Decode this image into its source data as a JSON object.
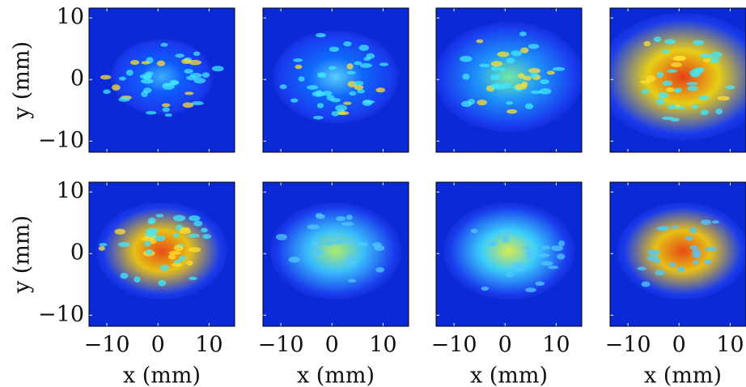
{
  "chart_data": [
    {
      "type": "image",
      "ylabel": "y (mm)",
      "xlim": [
        -13.5,
        15
      ],
      "ylim": [
        -11.8,
        11.6
      ],
      "xticks": [
        -10,
        0,
        10
      ],
      "yticks": [
        {
          "value": -10,
          "label": "−10"
        },
        0,
        10
      ]
    },
    {
      "type": "image",
      "xlim": [
        -13.5,
        15
      ],
      "ylim": [
        -11.8,
        11.6
      ],
      "xticks": [
        -10,
        0,
        10
      ],
      "yticks": [
        -10,
        0,
        10
      ]
    },
    {
      "type": "image",
      "xlim": [
        -13.5,
        15
      ],
      "ylim": [
        -11.8,
        11.6
      ],
      "xticks": [
        -10,
        0,
        10
      ],
      "yticks": [
        -10,
        0,
        10
      ]
    },
    {
      "type": "image",
      "xlim": [
        -13.5,
        15
      ],
      "ylim": [
        -11.8,
        11.6
      ],
      "xticks": [
        -10,
        0,
        10
      ],
      "yticks": [
        -10,
        0,
        10
      ]
    },
    {
      "type": "image",
      "ylabel": "y (mm)",
      "xlabel": "x (mm)",
      "xlim": [
        -13.5,
        15
      ],
      "ylim": [
        -11.8,
        11.6
      ],
      "xticks": [
        {
          "value": -10,
          "label": "−10"
        },
        0,
        10
      ],
      "yticks": [
        {
          "value": -10,
          "label": "−10"
        },
        0,
        10
      ]
    },
    {
      "type": "image",
      "xlabel": "x (mm)",
      "xlim": [
        -13.5,
        15
      ],
      "ylim": [
        -11.8,
        11.6
      ],
      "xticks": [
        {
          "value": -10,
          "label": "−10"
        },
        0,
        10
      ],
      "yticks": [
        -10,
        0,
        10
      ]
    },
    {
      "type": "image",
      "xlabel": "x (mm)",
      "xlim": [
        -13.5,
        15
      ],
      "ylim": [
        -11.8,
        11.6
      ],
      "xticks": [
        {
          "value": -10,
          "label": "−10"
        },
        0,
        10
      ],
      "yticks": [
        -10,
        0,
        10
      ]
    },
    {
      "type": "image",
      "xlabel": "x (mm)",
      "xlim": [
        -13.5,
        15
      ],
      "ylim": [
        -11.8,
        11.6
      ],
      "xticks": [
        {
          "value": -10,
          "label": "−10"
        },
        0,
        10
      ],
      "yticks": [
        -10,
        0,
        10
      ]
    }
  ]
}
